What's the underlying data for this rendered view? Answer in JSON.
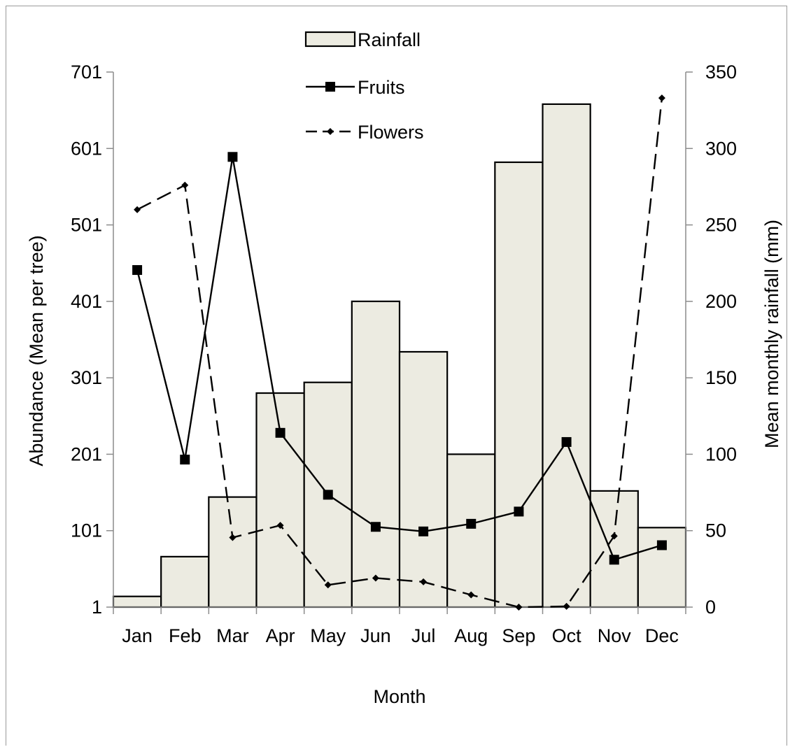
{
  "chart_data": {
    "type": "bar",
    "xlabel": "Month",
    "ylabel_left": "Abundance (Mean per tree)",
    "ylabel_right": "Mean monthly rainfall (mm)",
    "categories": [
      "Jan",
      "Feb",
      "Mar",
      "Apr",
      "May",
      "Jun",
      "Jul",
      "Aug",
      "Sep",
      "Oct",
      "Nov",
      "Dec"
    ],
    "left_axis": {
      "ylim": [
        1,
        701
      ],
      "ticks": [
        "1",
        "101",
        "201",
        "301",
        "401",
        "501",
        "601",
        "701"
      ]
    },
    "right_axis": {
      "ylim": [
        0,
        350
      ],
      "ticks": [
        "0",
        "50",
        "100",
        "150",
        "200",
        "250",
        "300",
        "350"
      ]
    },
    "legend_position": "top-center",
    "series": [
      {
        "name": "Rainfall",
        "type": "bar",
        "axis": "right",
        "color": "#ecebe1",
        "values": [
          7,
          33,
          72,
          140,
          147,
          200,
          167,
          100,
          291,
          329,
          76,
          52
        ]
      },
      {
        "name": "Fruits",
        "type": "line",
        "axis": "left",
        "marker": "square",
        "dash": "solid",
        "color": "#000000",
        "values": [
          442,
          194,
          590,
          229,
          148,
          106,
          100,
          110,
          126,
          217,
          63,
          82
        ]
      },
      {
        "name": "Flowers",
        "type": "line",
        "axis": "left",
        "marker": "diamond",
        "dash": "dashed",
        "color": "#000000",
        "values": [
          521,
          553,
          92,
          108,
          30,
          39,
          34,
          17,
          1,
          2,
          94,
          667
        ]
      }
    ]
  }
}
